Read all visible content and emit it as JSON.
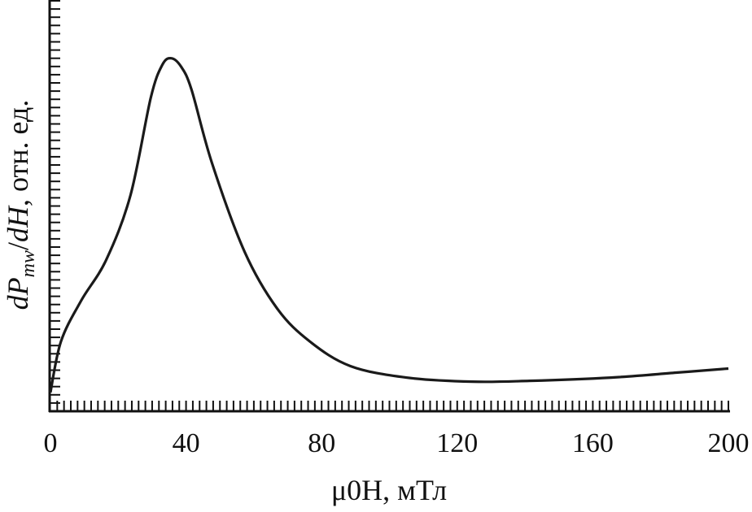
{
  "chart_data": {
    "type": "line",
    "title": "",
    "xlabel": "μ0H, мТл",
    "xlabel_parts": {
      "mu": "μ",
      "sub": "0",
      "var": "H",
      "unit": ", мТл"
    },
    "ylabel": "dPmw/dH, отн. ед.",
    "ylabel_parts": {
      "d1": "dP",
      "sub": "mw",
      "slash": "/",
      "d2": "dH",
      "unit": ", отн. ед."
    },
    "xlim": [
      0,
      200
    ],
    "ylim": [
      0,
      50
    ],
    "x_ticks": [
      "0",
      "40",
      "80",
      "120",
      "160",
      "200"
    ],
    "x_tick_values": [
      0,
      40,
      80,
      120,
      160,
      200
    ],
    "x_minor_step": 2,
    "y_minor_step": 1,
    "grid": false,
    "series": [
      {
        "name": "dPmw/dH",
        "color": "#1a1a1a",
        "x": [
          0,
          3.1,
          9.1,
          16.4,
          23.6,
          29.6,
          33,
          35.6,
          38.5,
          41.6,
          47.6,
          57.3,
          66.9,
          76.5,
          88.5,
          105,
          124.5,
          141.3,
          165.4,
          184.6,
          200
        ],
        "y": [
          2.3,
          8.5,
          13.5,
          18.4,
          26.3,
          38.2,
          42.2,
          43,
          42.0,
          39.2,
          30.3,
          19.4,
          12.5,
          8.5,
          5.5,
          4.1,
          3.6,
          3.7,
          4.1,
          4.7,
          5.2
        ]
      }
    ]
  }
}
